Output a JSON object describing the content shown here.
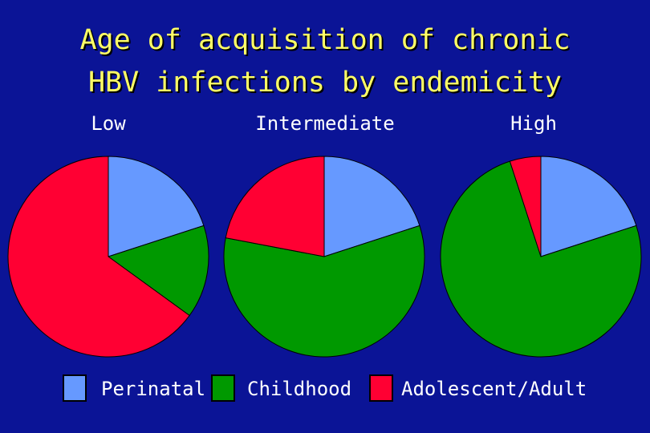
{
  "title_line1": "Age of acquisition of chronic",
  "title_line2": "HBV infections by endemicity",
  "chart_data": {
    "type": "pie",
    "title": "Age of acquisition of chronic HBV infections by endemicity",
    "categories": [
      "Perinatal",
      "Childhood",
      "Adolescent/Adult"
    ],
    "colors": [
      "#6699ff",
      "#009900",
      "#ff0033"
    ],
    "legend_position": "bottom",
    "pies": [
      {
        "label": "Low",
        "values": [
          20,
          15,
          65
        ]
      },
      {
        "label": "Intermediate",
        "values": [
          20,
          58,
          22
        ]
      },
      {
        "label": "High",
        "values": [
          20,
          75,
          5
        ]
      }
    ]
  }
}
